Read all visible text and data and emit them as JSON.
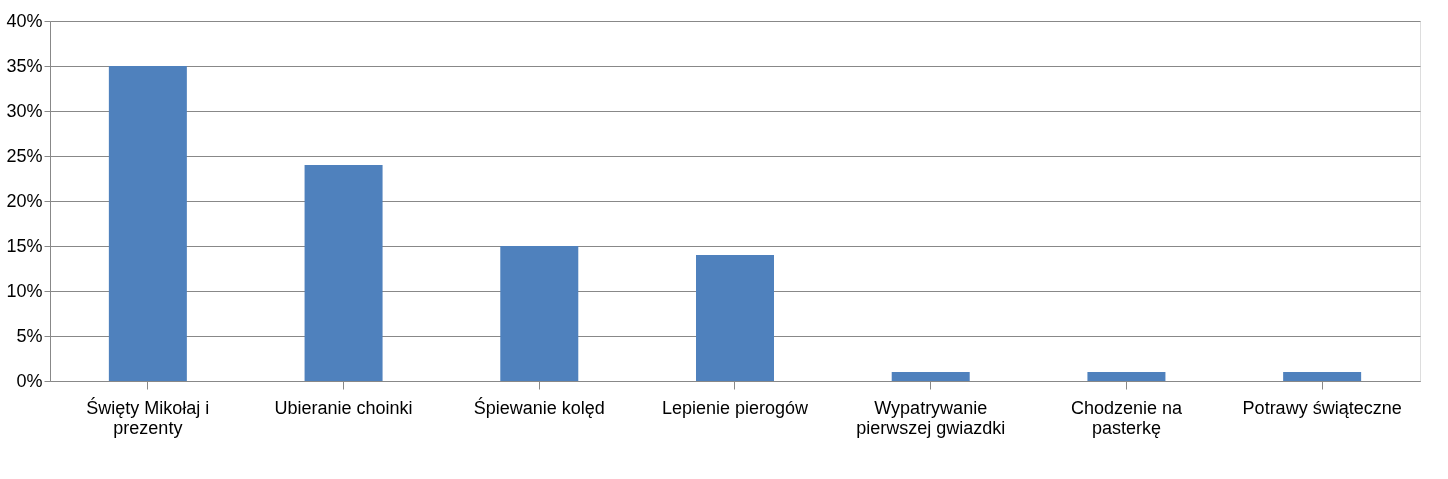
{
  "chart_data": {
    "type": "bar",
    "categories": [
      "Święty Mikołaj i prezenty",
      "Ubieranie choinki",
      "Śpiewanie kolęd",
      "Lepienie pierogów",
      "Wypatrywanie pierwszej gwiazdki",
      "Chodzenie na pasterkę",
      "Potrawy świąteczne"
    ],
    "values": [
      35,
      24,
      15,
      14,
      1,
      1,
      1
    ],
    "color": "#4f81bd",
    "ylim": [
      0,
      40
    ],
    "yticks": [
      {
        "value": 0,
        "label": "0%"
      },
      {
        "value": 5,
        "label": "5%"
      },
      {
        "value": 10,
        "label": "10%"
      },
      {
        "value": 15,
        "label": "15%"
      },
      {
        "value": 20,
        "label": "20%"
      },
      {
        "value": 25,
        "label": "25%"
      },
      {
        "value": 30,
        "label": "30%"
      },
      {
        "value": 35,
        "label": "35%"
      },
      {
        "value": 40,
        "label": "40%"
      }
    ],
    "grid": "y",
    "legend": false
  }
}
